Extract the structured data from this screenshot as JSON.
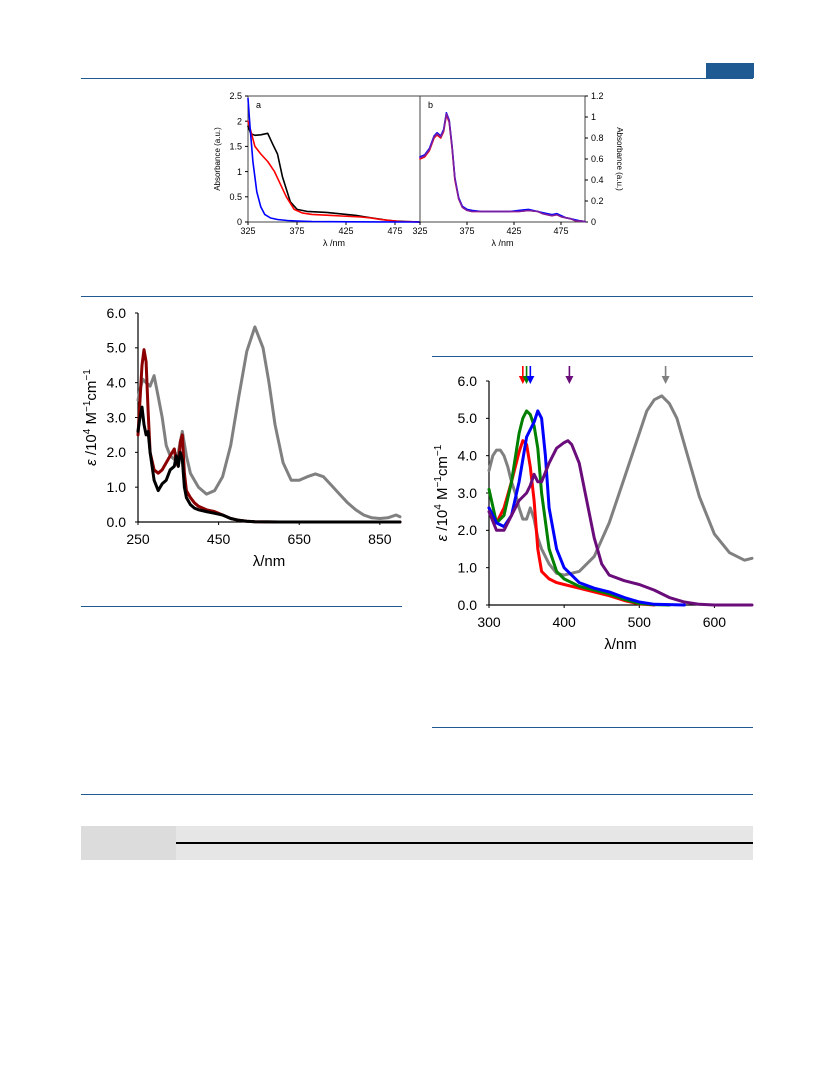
{
  "page": {
    "colors": {
      "rule": "#1f5b92",
      "table_header_bg": "#e6e6e6"
    }
  },
  "chart_data": [
    {
      "id": "top-a",
      "type": "line",
      "panel_label": "a",
      "ylabel": "Absorbance (a.u.)",
      "xlabel": "λ /nm",
      "xlim": [
        325,
        500
      ],
      "ylim": [
        0,
        2.5
      ],
      "xticks": [
        "325",
        "375",
        "425",
        "475"
      ],
      "yticks": [
        "0",
        "0.5",
        "1",
        "1.5",
        "2",
        "2.5"
      ],
      "grid": false,
      "series": [
        {
          "color": "#000000",
          "x": [
            325,
            328,
            332,
            338,
            345,
            350,
            355,
            360,
            368,
            375,
            385,
            395,
            405,
            415,
            425,
            435,
            445,
            455,
            465,
            475,
            485,
            500
          ],
          "y": [
            1.9,
            1.75,
            1.72,
            1.73,
            1.76,
            1.55,
            1.35,
            0.9,
            0.4,
            0.25,
            0.21,
            0.2,
            0.19,
            0.17,
            0.15,
            0.13,
            0.1,
            0.07,
            0.04,
            0.02,
            0.01,
            0.0
          ]
        },
        {
          "color": "#ff0000",
          "x": [
            325,
            328,
            332,
            338,
            345,
            352,
            358,
            364,
            372,
            380,
            390,
            400,
            410,
            420,
            430,
            440,
            450,
            460,
            470,
            480,
            490,
            500
          ],
          "y": [
            2.0,
            1.8,
            1.5,
            1.35,
            1.2,
            1.0,
            0.75,
            0.5,
            0.25,
            0.18,
            0.15,
            0.14,
            0.13,
            0.12,
            0.11,
            0.1,
            0.08,
            0.05,
            0.03,
            0.01,
            0.005,
            0.0
          ]
        },
        {
          "color": "#0000ff",
          "x": [
            325,
            327,
            330,
            334,
            338,
            342,
            348,
            355,
            365,
            375,
            390,
            410,
            430,
            460,
            500
          ],
          "y": [
            2.45,
            1.9,
            1.2,
            0.6,
            0.3,
            0.15,
            0.08,
            0.05,
            0.03,
            0.02,
            0.01,
            0.005,
            0.003,
            0.001,
            0.0
          ]
        }
      ]
    },
    {
      "id": "top-b",
      "type": "line",
      "panel_label": "b",
      "ylabel": "Absorbance (a.u.)",
      "xlabel": "λ /nm",
      "xlim": [
        325,
        500
      ],
      "ylim": [
        0,
        1.2
      ],
      "xticks": [
        "325",
        "375",
        "425",
        "475"
      ],
      "yticks": [
        "0",
        "0.2",
        "0.4",
        "0.6",
        "0.8",
        "1",
        "1.2"
      ],
      "grid": false,
      "series": [
        {
          "color": "#ff0000",
          "x": [
            325,
            330,
            335,
            340,
            343,
            347,
            350,
            353,
            356,
            359,
            362,
            366,
            370,
            375,
            380,
            390,
            400,
            410,
            420,
            430,
            440,
            450,
            455,
            460,
            465,
            470,
            475,
            480,
            485,
            490,
            495,
            500
          ],
          "y": [
            0.6,
            0.62,
            0.68,
            0.8,
            0.83,
            0.8,
            0.86,
            1.02,
            0.95,
            0.7,
            0.4,
            0.22,
            0.14,
            0.11,
            0.1,
            0.1,
            0.1,
            0.1,
            0.1,
            0.1,
            0.11,
            0.1,
            0.08,
            0.07,
            0.06,
            0.07,
            0.05,
            0.04,
            0.03,
            0.01,
            0.01,
            0.005
          ]
        },
        {
          "color": "#0000ff",
          "x": [
            325,
            330,
            335,
            340,
            343,
            347,
            350,
            353,
            356,
            359,
            362,
            366,
            370,
            375,
            380,
            390,
            400,
            410,
            420,
            430,
            440,
            450,
            455,
            460,
            465,
            470,
            475,
            480,
            485,
            490,
            495,
            500
          ],
          "y": [
            0.62,
            0.64,
            0.7,
            0.82,
            0.85,
            0.82,
            0.88,
            1.04,
            0.97,
            0.72,
            0.42,
            0.23,
            0.15,
            0.12,
            0.11,
            0.1,
            0.1,
            0.1,
            0.1,
            0.11,
            0.12,
            0.1,
            0.09,
            0.08,
            0.07,
            0.08,
            0.06,
            0.04,
            0.03,
            0.02,
            0.01,
            0.005
          ]
        },
        {
          "color": "#7a1fa2",
          "x": [
            325,
            330,
            335,
            340,
            343,
            347,
            350,
            353,
            356,
            359,
            362,
            366,
            370,
            375,
            380,
            390,
            400,
            410,
            420,
            430,
            440,
            450,
            455,
            460,
            465,
            470,
            475,
            480,
            485,
            490,
            495,
            500
          ],
          "y": [
            0.61,
            0.63,
            0.69,
            0.81,
            0.84,
            0.81,
            0.87,
            1.03,
            0.96,
            0.71,
            0.41,
            0.22,
            0.14,
            0.11,
            0.1,
            0.1,
            0.1,
            0.1,
            0.1,
            0.1,
            0.11,
            0.1,
            0.08,
            0.07,
            0.06,
            0.07,
            0.05,
            0.04,
            0.03,
            0.01,
            0.01,
            0.005
          ]
        }
      ]
    },
    {
      "id": "mid-left",
      "type": "line",
      "ylabel_parts": [
        "ε",
        " /10",
        "4",
        " M",
        "−1",
        "cm",
        "−1"
      ],
      "xlabel": "λ/nm",
      "xlim": [
        250,
        900
      ],
      "ylim": [
        0,
        6.0
      ],
      "xticks": [
        "250",
        "450",
        "650",
        "850"
      ],
      "yticks": [
        "0.0",
        "1.0",
        "2.0",
        "3.0",
        "4.0",
        "5.0",
        "6.0"
      ],
      "grid": false,
      "series": [
        {
          "color": "#808080",
          "x": [
            250,
            255,
            262,
            270,
            280,
            290,
            300,
            310,
            320,
            330,
            340,
            350,
            360,
            370,
            380,
            390,
            400,
            420,
            440,
            460,
            480,
            500,
            520,
            540,
            560,
            575,
            590,
            610,
            630,
            650,
            670,
            690,
            710,
            730,
            750,
            770,
            790,
            810,
            830,
            850,
            870,
            890,
            900
          ],
          "y": [
            3.5,
            3.8,
            4.1,
            4.0,
            3.9,
            4.2,
            3.6,
            3.0,
            2.2,
            1.9,
            1.8,
            2.0,
            2.6,
            1.9,
            1.4,
            1.2,
            1.0,
            0.8,
            0.9,
            1.3,
            2.2,
            3.6,
            4.9,
            5.6,
            5.0,
            4.0,
            2.8,
            1.7,
            1.2,
            1.2,
            1.3,
            1.38,
            1.3,
            1.05,
            0.8,
            0.55,
            0.35,
            0.2,
            0.12,
            0.1,
            0.12,
            0.2,
            0.15
          ]
        },
        {
          "color": "#8b0000",
          "x": [
            250,
            255,
            260,
            265,
            270,
            275,
            280,
            290,
            300,
            310,
            320,
            330,
            340,
            345,
            350,
            355,
            360,
            365,
            370,
            380,
            390,
            400,
            420,
            440,
            460,
            480,
            500,
            520,
            540,
            600,
            700,
            800,
            900
          ],
          "y": [
            2.5,
            3.5,
            4.5,
            4.95,
            4.6,
            3.2,
            2.0,
            1.5,
            1.4,
            1.5,
            1.7,
            1.9,
            2.1,
            1.7,
            1.6,
            2.3,
            2.5,
            1.4,
            0.9,
            0.7,
            0.55,
            0.45,
            0.35,
            0.3,
            0.2,
            0.1,
            0.05,
            0.02,
            0.01,
            0.0,
            0.0,
            0.0,
            0.0
          ]
        },
        {
          "color": "#000000",
          "x": [
            250,
            255,
            260,
            265,
            270,
            275,
            280,
            290,
            300,
            310,
            320,
            330,
            340,
            345,
            350,
            355,
            360,
            365,
            370,
            380,
            390,
            400,
            420,
            440,
            460,
            480,
            500,
            520,
            540,
            600,
            700,
            800,
            900
          ],
          "y": [
            2.6,
            3.0,
            3.3,
            2.8,
            2.5,
            2.6,
            2.0,
            1.2,
            0.9,
            1.1,
            1.2,
            1.5,
            1.6,
            1.9,
            1.6,
            2.0,
            1.8,
            1.0,
            0.7,
            0.5,
            0.4,
            0.35,
            0.3,
            0.25,
            0.2,
            0.1,
            0.05,
            0.02,
            0.01,
            0.0,
            0.0,
            0.0,
            0.0
          ]
        }
      ]
    },
    {
      "id": "mid-right",
      "type": "line",
      "ylabel_parts": [
        "ε",
        " /10",
        "4",
        " M",
        "−1",
        "cm",
        "−1"
      ],
      "xlabel": "λ/nm",
      "xlim": [
        300,
        650
      ],
      "ylim": [
        0,
        6.0
      ],
      "xticks": [
        "300",
        "400",
        "500",
        "600"
      ],
      "yticks": [
        "0.0",
        "1.0",
        "2.0",
        "3.0",
        "4.0",
        "5.0",
        "6.0"
      ],
      "grid": false,
      "arrows": [
        {
          "x": 345,
          "color": "#ff0000"
        },
        {
          "x": 350,
          "color": "#008000"
        },
        {
          "x": 355,
          "color": "#0000ff"
        },
        {
          "x": 407,
          "color": "#6a0d7a"
        },
        {
          "x": 535,
          "color": "#808080"
        }
      ],
      "series": [
        {
          "color": "#808080",
          "x": [
            300,
            305,
            310,
            315,
            320,
            325,
            330,
            335,
            340,
            345,
            350,
            355,
            360,
            365,
            370,
            380,
            390,
            400,
            420,
            440,
            460,
            480,
            500,
            510,
            520,
            530,
            540,
            550,
            560,
            580,
            600,
            620,
            640,
            650
          ],
          "y": [
            3.6,
            4.0,
            4.15,
            4.15,
            4.0,
            3.7,
            3.3,
            3.0,
            2.6,
            2.3,
            2.3,
            2.6,
            2.3,
            1.8,
            1.5,
            1.1,
            0.85,
            0.8,
            0.9,
            1.3,
            2.2,
            3.4,
            4.6,
            5.2,
            5.5,
            5.6,
            5.4,
            5.0,
            4.3,
            2.9,
            1.9,
            1.4,
            1.2,
            1.25
          ]
        },
        {
          "color": "#ff0000",
          "x": [
            300,
            310,
            320,
            330,
            340,
            345,
            350,
            355,
            360,
            365,
            370,
            380,
            390,
            400,
            420,
            440,
            460,
            480,
            500,
            520
          ],
          "y": [
            2.6,
            2.2,
            2.6,
            3.3,
            4.1,
            4.4,
            4.3,
            3.7,
            2.8,
            1.5,
            0.9,
            0.7,
            0.6,
            0.55,
            0.45,
            0.35,
            0.25,
            0.12,
            0.03,
            0.0
          ]
        },
        {
          "color": "#008000",
          "x": [
            300,
            310,
            320,
            330,
            340,
            345,
            350,
            355,
            360,
            365,
            370,
            380,
            390,
            400,
            420,
            440,
            460,
            480,
            500,
            520,
            540
          ],
          "y": [
            3.1,
            2.2,
            2.4,
            3.3,
            4.6,
            5.0,
            5.2,
            5.1,
            4.8,
            4.2,
            3.0,
            1.5,
            0.9,
            0.7,
            0.5,
            0.4,
            0.3,
            0.15,
            0.04,
            0.01,
            0.0
          ]
        },
        {
          "color": "#0000ff",
          "x": [
            300,
            310,
            320,
            330,
            340,
            350,
            355,
            360,
            365,
            370,
            375,
            380,
            390,
            400,
            420,
            440,
            460,
            480,
            500,
            520,
            540,
            560
          ],
          "y": [
            2.6,
            2.2,
            2.1,
            2.4,
            3.3,
            4.5,
            4.7,
            4.9,
            5.2,
            5.0,
            4.0,
            2.6,
            1.5,
            1.0,
            0.6,
            0.45,
            0.35,
            0.2,
            0.08,
            0.02,
            0.01,
            0.0
          ]
        },
        {
          "color": "#6a0d7a",
          "x": [
            300,
            310,
            320,
            330,
            340,
            350,
            355,
            360,
            365,
            370,
            380,
            390,
            400,
            405,
            410,
            420,
            430,
            440,
            450,
            460,
            480,
            500,
            520,
            540,
            560,
            580,
            600,
            650
          ],
          "y": [
            2.5,
            2.0,
            2.0,
            2.4,
            2.8,
            3.0,
            3.2,
            3.5,
            3.3,
            3.3,
            3.8,
            4.2,
            4.35,
            4.4,
            4.3,
            3.8,
            2.8,
            1.8,
            1.1,
            0.8,
            0.65,
            0.55,
            0.4,
            0.2,
            0.08,
            0.02,
            0.0,
            0.0
          ]
        }
      ]
    }
  ]
}
